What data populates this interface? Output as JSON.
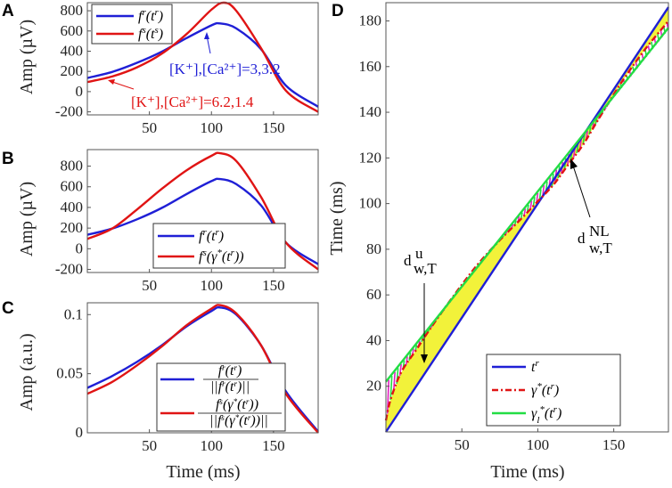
{
  "chart_data": [
    {
      "id": "A",
      "type": "line",
      "panel_label": "A",
      "ylabel": "Amp (µV)",
      "xlabel": "",
      "xlim": [
        0,
        186
      ],
      "ylim": [
        -230,
        880
      ],
      "xticks": [
        50,
        100,
        150
      ],
      "yticks": [
        -200,
        0,
        200,
        400,
        600,
        800
      ],
      "series": [
        {
          "name": "f^r(t^r)",
          "color": "#1f1fd6",
          "x": [
            0,
            20,
            40,
            60,
            80,
            100,
            107,
            120,
            140,
            160,
            186
          ],
          "y": [
            135,
            195,
            285,
            395,
            530,
            655,
            675,
            625,
            420,
            60,
            -150
          ]
        },
        {
          "name": "f^s(t^s)",
          "color": "#e01414",
          "x": [
            0,
            20,
            40,
            60,
            80,
            100,
            110,
            120,
            140,
            160,
            186
          ],
          "y": [
            95,
            150,
            240,
            375,
            570,
            810,
            880,
            800,
            430,
            10,
            -200
          ]
        }
      ],
      "legend": [
        {
          "label": "f^r(t^r)",
          "color": "#1f1fd6"
        },
        {
          "label": "f^s(t^s)",
          "color": "#e01414"
        }
      ],
      "annotations": [
        {
          "text": "[K⁺],[Ca²⁺]=3,3.2",
          "color": "#1f1fd6"
        },
        {
          "text": "[K⁺],[Ca²⁺]=6.2,1.4",
          "color": "#e01414"
        }
      ]
    },
    {
      "id": "B",
      "type": "line",
      "panel_label": "B",
      "ylabel": "Amp (µV)",
      "xlabel": "",
      "xlim": [
        0,
        186
      ],
      "ylim": [
        -230,
        960
      ],
      "xticks": [
        50,
        100,
        150
      ],
      "yticks": [
        -200,
        0,
        200,
        400,
        600,
        800
      ],
      "series": [
        {
          "name": "f^r(t^r)",
          "color": "#1f1fd6",
          "x": [
            0,
            20,
            40,
            60,
            80,
            100,
            107,
            120,
            140,
            160,
            186
          ],
          "y": [
            135,
            195,
            285,
            395,
            530,
            655,
            675,
            625,
            420,
            60,
            -150
          ]
        },
        {
          "name": "f^s(gamma*(t^r))",
          "color": "#e01414",
          "x": [
            0,
            20,
            40,
            60,
            80,
            100,
            107,
            120,
            140,
            160,
            186
          ],
          "y": [
            95,
            195,
            380,
            580,
            760,
            900,
            925,
            850,
            500,
            60,
            -200
          ]
        }
      ],
      "legend": [
        {
          "label": "f^r(t^r)",
          "color": "#1f1fd6"
        },
        {
          "label": "f^s(γ*(t^r))",
          "color": "#e01414"
        }
      ]
    },
    {
      "id": "C",
      "type": "line",
      "panel_label": "C",
      "ylabel": "Amp (a.u.)",
      "xlabel": "Time (ms)",
      "xlim": [
        0,
        186
      ],
      "ylim": [
        0,
        0.11
      ],
      "xticks": [
        50,
        100,
        150
      ],
      "yticks": [
        0,
        0.05,
        0.1
      ],
      "series": [
        {
          "name": "f^r(t^r)/||f^r(t^r)||",
          "color": "#1f1fd6",
          "x": [
            0,
            20,
            40,
            60,
            80,
            100,
            107,
            120,
            140,
            160,
            186
          ],
          "y": [
            0.038,
            0.048,
            0.06,
            0.074,
            0.09,
            0.103,
            0.106,
            0.1,
            0.074,
            0.035,
            0.001
          ]
        },
        {
          "name": "f^s(gamma*(t^r))/||f^s(gamma*(t^r))||",
          "color": "#e01414",
          "x": [
            0,
            20,
            40,
            60,
            80,
            100,
            107,
            120,
            140,
            160,
            186
          ],
          "y": [
            0.033,
            0.043,
            0.057,
            0.073,
            0.091,
            0.105,
            0.108,
            0.101,
            0.074,
            0.033,
            0.0
          ]
        }
      ],
      "legend": [
        {
          "label": "f^r(t^r) / ||f^r(t^r)||",
          "color": "#1f1fd6"
        },
        {
          "label": "f^s(γ*(t^r)) / ||f^s(γ*(t^r))||",
          "color": "#e01414"
        }
      ]
    },
    {
      "id": "D",
      "type": "line",
      "panel_label": "D",
      "ylabel": "Time (ms)",
      "xlabel": "Time (ms)",
      "xlim": [
        0,
        186
      ],
      "ylim": [
        0,
        188
      ],
      "xticks": [
        50,
        100,
        150
      ],
      "yticks": [
        20,
        40,
        60,
        80,
        100,
        120,
        140,
        160,
        180
      ],
      "series": [
        {
          "name": "t^r",
          "color": "#1f1fd6",
          "style": "solid",
          "x": [
            0,
            186
          ],
          "y": [
            0,
            186
          ]
        },
        {
          "name": "gamma*(t^r)",
          "color": "#e01414",
          "style": "dashdot",
          "x": [
            0,
            3,
            10,
            20,
            30,
            45,
            60,
            75,
            90,
            100,
            110,
            120,
            130,
            140,
            155,
            170,
            186
          ],
          "y": [
            5,
            14,
            26,
            36,
            46,
            60,
            73,
            84,
            94,
            101,
            108,
            117,
            126,
            137,
            153,
            167,
            180
          ]
        },
        {
          "name": "gamma_l*(t^r)",
          "color": "#22dd44",
          "style": "solid",
          "x": [
            0,
            186
          ],
          "y": [
            22,
            177
          ]
        }
      ],
      "legend": [
        {
          "label": "t^r",
          "color": "#1f1fd6"
        },
        {
          "label": "γ*(t^r)",
          "color": "#e01414"
        },
        {
          "label": "γ_l*(t^r)",
          "color": "#22dd44"
        }
      ],
      "annotations": [
        {
          "text": "d^u_w,T"
        },
        {
          "text": "d^NL_w,T"
        }
      ]
    }
  ]
}
